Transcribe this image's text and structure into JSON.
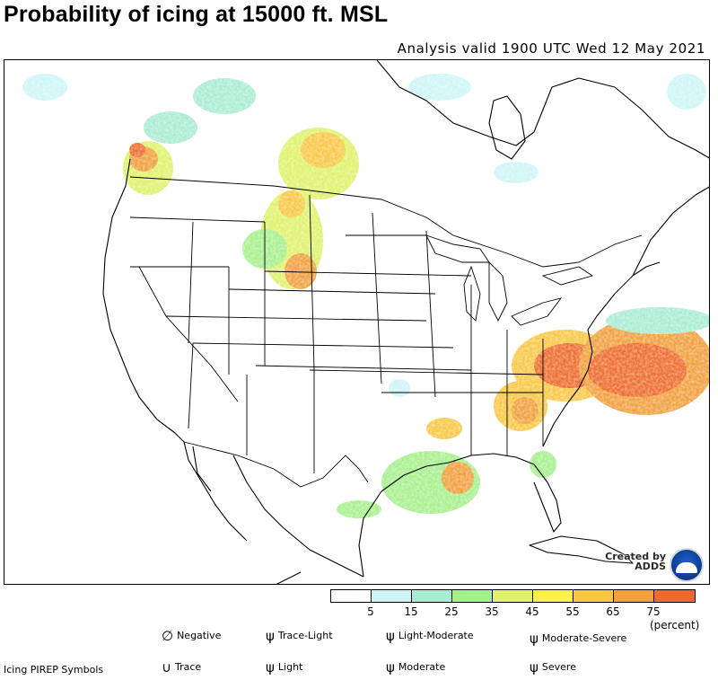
{
  "header": {
    "title": "Probability of icing at 15000 ft. MSL",
    "analysis": "Analysis valid 1900 UTC Wed 12 May 2021"
  },
  "credit": {
    "text_line1": "Created by",
    "text_line2": "ADDS",
    "logo": "noaa-logo"
  },
  "legend": {
    "colors": [
      "#ffffff",
      "#ccf5f5",
      "#a8ecd3",
      "#a6f08c",
      "#dff26a",
      "#fbf04a",
      "#f8c743",
      "#f29f3c",
      "#ee6a2b"
    ],
    "ticks": [
      "5",
      "15",
      "25",
      "35",
      "45",
      "55",
      "65",
      "75"
    ],
    "unit": "(percent)"
  },
  "pirep": {
    "caption": "Icing PIREP Symbols",
    "symbols": [
      {
        "label": "Negative",
        "icon": "negative-icing-icon"
      },
      {
        "label": "Trace",
        "icon": "trace-icing-icon"
      },
      {
        "label": "Trace-Light",
        "icon": "trace-light-icing-icon"
      },
      {
        "label": "Light",
        "icon": "light-icing-icon"
      },
      {
        "label": "Light-Moderate",
        "icon": "light-moderate-icing-icon"
      },
      {
        "label": "Moderate",
        "icon": "moderate-icing-icon"
      },
      {
        "label": "Moderate-Severe",
        "icon": "moderate-severe-icing-icon"
      },
      {
        "label": "Severe",
        "icon": "severe-icing-icon"
      }
    ]
  }
}
